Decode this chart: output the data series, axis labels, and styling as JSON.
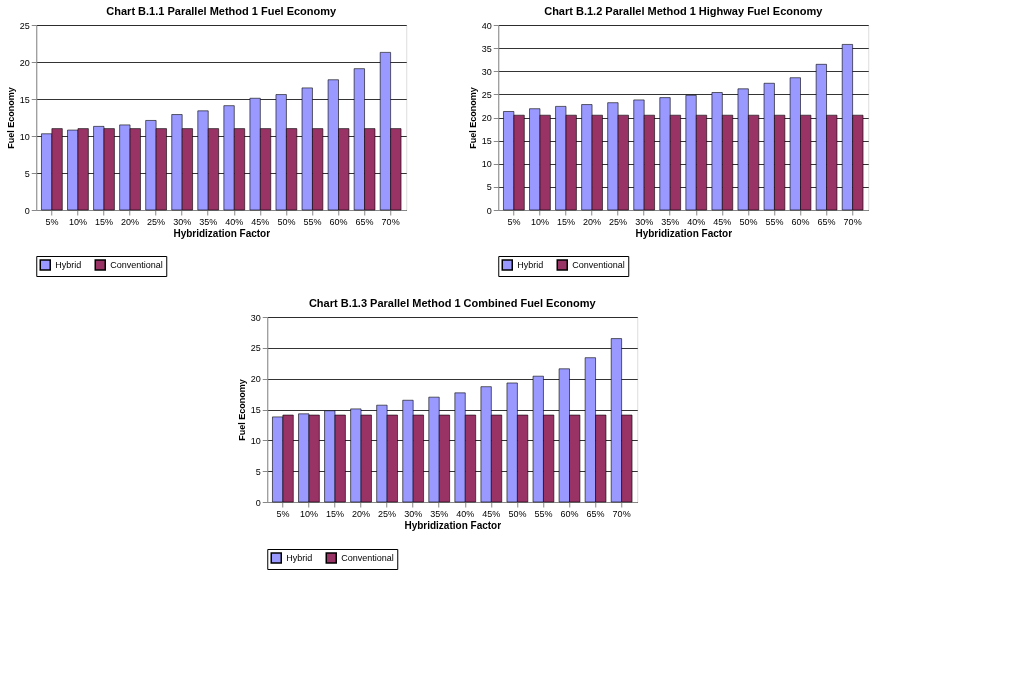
{
  "chart_data": [
    {
      "type": "bar",
      "title": "Chart B.1.1 Parallel Method 1 Fuel Economy",
      "xlabel": "Hybridization Factor",
      "ylabel": "Fuel Economy",
      "categories": [
        "5%",
        "10%",
        "15%",
        "20%",
        "25%",
        "30%",
        "35%",
        "40%",
        "45%",
        "50%",
        "55%",
        "60%",
        "65%",
        "70%"
      ],
      "series": [
        {
          "name": "Hybrid",
          "color": "#9999ff",
          "values": [
            10.3,
            10.8,
            11.3,
            11.5,
            12.1,
            12.9,
            13.4,
            14.1,
            15.1,
            15.6,
            16.5,
            17.6,
            19.1,
            21.3
          ]
        },
        {
          "name": "Conventional",
          "color": "#993366",
          "values": [
            11.0,
            11.0,
            11.0,
            11.0,
            11.0,
            11.0,
            11.0,
            11.0,
            11.0,
            11.0,
            11.0,
            11.0,
            11.0,
            11.0
          ]
        }
      ],
      "ylim": [
        0,
        25
      ],
      "yticks": [
        0,
        5,
        10,
        15,
        20,
        25
      ],
      "grid": "y",
      "legend": "bottom"
    },
    {
      "type": "bar",
      "title": "Chart B.1.2 Parallel Method 1 Highway Fuel Economy",
      "xlabel": "Hybridization Factor",
      "ylabel": "Fuel Economy",
      "categories": [
        "5%",
        "10%",
        "15%",
        "20%",
        "25%",
        "30%",
        "35%",
        "40%",
        "45%",
        "50%",
        "55%",
        "60%",
        "65%",
        "70%"
      ],
      "series": [
        {
          "name": "Hybrid",
          "color": "#9999ff",
          "values": [
            21.3,
            21.9,
            22.4,
            22.8,
            23.2,
            23.8,
            24.3,
            24.8,
            25.4,
            26.2,
            27.4,
            28.6,
            31.5,
            35.8
          ]
        },
        {
          "name": "Conventional",
          "color": "#993366",
          "values": [
            20.5,
            20.5,
            20.5,
            20.5,
            20.5,
            20.5,
            20.5,
            20.5,
            20.5,
            20.5,
            20.5,
            20.5,
            20.5,
            20.5
          ]
        }
      ],
      "ylim": [
        0,
        40
      ],
      "yticks": [
        0,
        5,
        10,
        15,
        20,
        25,
        30,
        35,
        40
      ],
      "grid": "y",
      "legend": "bottom"
    },
    {
      "type": "bar",
      "title": "Chart B.1.3 Parallel Method 1 Combined Fuel Economy",
      "xlabel": "Hybridization Factor",
      "ylabel": "Fuel Economy",
      "categories": [
        "5%",
        "10%",
        "15%",
        "20%",
        "25%",
        "30%",
        "35%",
        "40%",
        "45%",
        "50%",
        "55%",
        "60%",
        "65%",
        "70%"
      ],
      "series": [
        {
          "name": "Hybrid",
          "color": "#9999ff",
          "values": [
            13.8,
            14.3,
            14.8,
            15.1,
            15.7,
            16.5,
            17.0,
            17.7,
            18.7,
            19.3,
            20.4,
            21.6,
            23.4,
            26.5
          ]
        },
        {
          "name": "Conventional",
          "color": "#993366",
          "values": [
            14.1,
            14.1,
            14.1,
            14.1,
            14.1,
            14.1,
            14.1,
            14.1,
            14.1,
            14.1,
            14.1,
            14.1,
            14.1,
            14.1
          ]
        }
      ],
      "ylim": [
        0,
        30
      ],
      "yticks": [
        0,
        5,
        10,
        15,
        20,
        25,
        30
      ],
      "grid": "y",
      "legend": "bottom"
    }
  ]
}
